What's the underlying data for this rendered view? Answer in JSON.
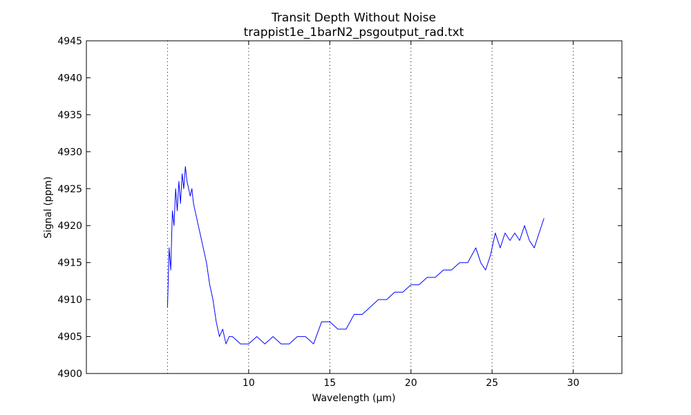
{
  "chart_data": {
    "type": "line",
    "title": "Transit Depth Without Noise",
    "subtitle": "trappist1e_1barN2_psgoutput_rad.txt",
    "xlabel": "Wavelength (μm)",
    "ylabel": "Signal (ppm)",
    "xlim": [
      0,
      33
    ],
    "ylim": [
      4900,
      4945
    ],
    "xticks": [
      10,
      15,
      20,
      25,
      30
    ],
    "yticks": [
      4900,
      4905,
      4910,
      4915,
      4920,
      4925,
      4930,
      4935,
      4940,
      4945
    ],
    "x_gridlines": [
      5,
      10,
      15,
      20,
      25,
      30
    ],
    "grid": "vertical-dotted",
    "line_color": "#0000ff",
    "series": [
      {
        "x": [
          5.0,
          5.1,
          5.2,
          5.3,
          5.4,
          5.5,
          5.6,
          5.7,
          5.8,
          5.9,
          6.0,
          6.1,
          6.2,
          6.3,
          6.4,
          6.5,
          6.6,
          6.7,
          6.8,
          6.9,
          7.0,
          7.2,
          7.4,
          7.6,
          7.8,
          8.0,
          8.2,
          8.4,
          8.6,
          8.8,
          9.0,
          9.5,
          10.0,
          10.5,
          11.0,
          11.5,
          12.0,
          12.5,
          13.0,
          13.5,
          14.0,
          14.5,
          15.0,
          15.5,
          16.0,
          16.5,
          17.0,
          17.5,
          18.0,
          18.5,
          19.0,
          19.5,
          20.0,
          20.5,
          21.0,
          21.5,
          22.0,
          22.5,
          23.0,
          23.5,
          24.0,
          24.3,
          24.6,
          24.9,
          25.2,
          25.5,
          25.8,
          26.1,
          26.4,
          26.7,
          27.0,
          27.3,
          27.6,
          27.9,
          28.2
        ],
        "y": [
          4909,
          4917,
          4914,
          4922,
          4920,
          4925,
          4922,
          4926,
          4923,
          4927,
          4925,
          4928,
          4926,
          4925,
          4924,
          4925,
          4923,
          4922,
          4921,
          4920,
          4919,
          4917,
          4915,
          4912,
          4910,
          4907,
          4905,
          4906,
          4904,
          4905,
          4905,
          4904,
          4904,
          4905,
          4904,
          4905,
          4904,
          4904,
          4905,
          4905,
          4904,
          4907,
          4907,
          4906,
          4906,
          4908,
          4908,
          4909,
          4910,
          4910,
          4911,
          4911,
          4912,
          4912,
          4913,
          4913,
          4914,
          4914,
          4915,
          4915,
          4917,
          4915,
          4914,
          4916,
          4919,
          4917,
          4919,
          4918,
          4919,
          4918,
          4920,
          4918,
          4917,
          4919,
          4921
        ]
      }
    ]
  }
}
